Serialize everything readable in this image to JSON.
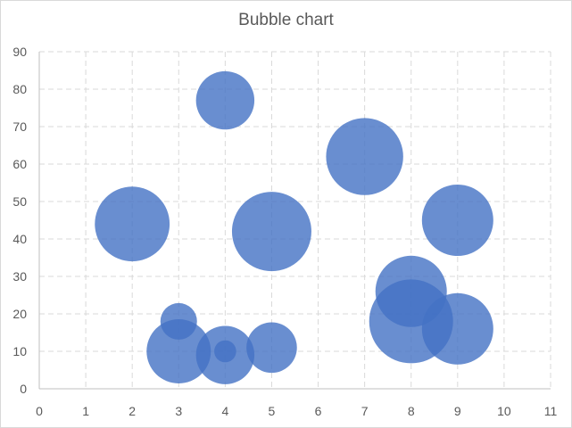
{
  "chart_data": {
    "type": "bubble",
    "title": "Bubble chart",
    "xlabel": "",
    "ylabel": "",
    "xlim": [
      0,
      11
    ],
    "ylim": [
      0,
      90
    ],
    "xticks": [
      0,
      1,
      2,
      3,
      4,
      5,
      6,
      7,
      8,
      9,
      10,
      11
    ],
    "yticks": [
      0,
      10,
      20,
      30,
      40,
      50,
      60,
      70,
      80,
      90
    ],
    "grid": true,
    "grid_style": "dashed",
    "bubble_color": "#4472c4",
    "bubble_opacity": 0.8,
    "points": [
      {
        "x": 4,
        "y": 77,
        "size": 28
      },
      {
        "x": 7,
        "y": 62,
        "size": 49
      },
      {
        "x": 2,
        "y": 44,
        "size": 46
      },
      {
        "x": 5,
        "y": 42,
        "size": 52
      },
      {
        "x": 9,
        "y": 45,
        "size": 42
      },
      {
        "x": 8,
        "y": 26,
        "size": 42
      },
      {
        "x": 3,
        "y": 18,
        "size": 11
      },
      {
        "x": 3,
        "y": 10,
        "size": 34
      },
      {
        "x": 4,
        "y": 9,
        "size": 28
      },
      {
        "x": 4,
        "y": 10,
        "size": 4
      },
      {
        "x": 5,
        "y": 11,
        "size": 21
      },
      {
        "x": 8,
        "y": 18,
        "size": 58
      },
      {
        "x": 9,
        "y": 16,
        "size": 42
      }
    ]
  }
}
